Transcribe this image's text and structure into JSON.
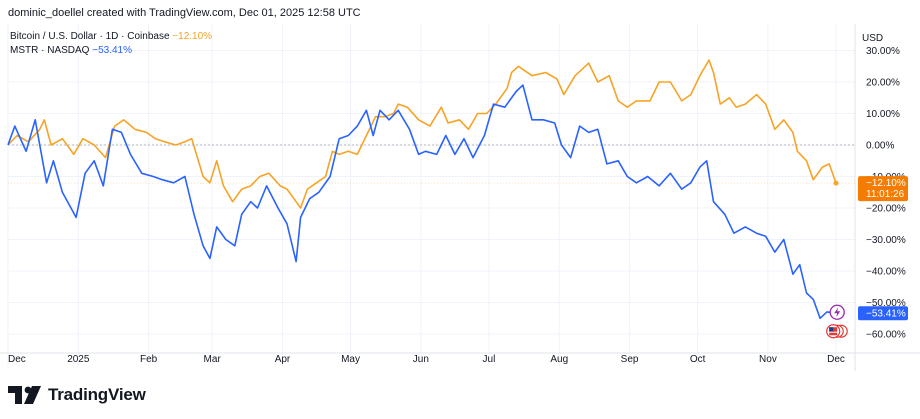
{
  "header": {
    "caption": "dominic_doellel created with TradingView.com, Dec 01, 2025 12:58 UTC"
  },
  "legend": {
    "row1_name": "Bitcoin / U.S. Dollar · 1D · Coinbase",
    "row1_change": "−12.10%",
    "row2_name": "MSTR · NASDAQ",
    "row2_change": "−53.41%"
  },
  "currency": "USD",
  "footer": {
    "brand": "TradingView"
  },
  "colors": {
    "btc": "#f7a325",
    "mstr": "#2962ff",
    "grid": "#f0f3fa",
    "zero_line": "#b2b5be",
    "axis_text": "#131722",
    "btc_label_bg": "#f57c00"
  },
  "badges": {
    "btc_value": "−12.10%",
    "btc_countdown": "11:01:26",
    "mstr_value": "−53.41%"
  },
  "chart_data": {
    "type": "line",
    "y_scale": "percent",
    "ylim": [
      -63,
      30
    ],
    "y_ticks": [
      "30.00%",
      "20.00%",
      "10.00%",
      "0.00%",
      "−10.00%",
      "−20.00%",
      "−30.00%",
      "−40.00%",
      "−50.00%",
      "−60.00%"
    ],
    "y_tick_values": [
      30,
      20,
      10,
      0,
      -10,
      -20,
      -30,
      -40,
      -50,
      -60
    ],
    "x_ticks": [
      "Dec",
      "2025",
      "Feb",
      "Mar",
      "Apr",
      "May",
      "Jun",
      "Jul",
      "Aug",
      "Sep",
      "Oct",
      "Nov",
      "Dec"
    ],
    "x_tick_dates": [
      "2024-12-01",
      "2025-01-01",
      "2025-02-01",
      "2025-03-01",
      "2025-04-01",
      "2025-05-01",
      "2025-06-01",
      "2025-07-01",
      "2025-08-01",
      "2025-09-01",
      "2025-10-01",
      "2025-11-01",
      "2025-12-01"
    ],
    "series": [
      {
        "name": "Bitcoin / U.S. Dollar · 1D · Coinbase",
        "color": "#f7a325",
        "last_value": "−12.10%",
        "points": [
          [
            "2024-12-01",
            0
          ],
          [
            "2024-12-05",
            3
          ],
          [
            "2024-12-10",
            1
          ],
          [
            "2024-12-15",
            5
          ],
          [
            "2024-12-17",
            8
          ],
          [
            "2024-12-20",
            0
          ],
          [
            "2024-12-25",
            2
          ],
          [
            "2024-12-30",
            -3
          ],
          [
            "2025-01-03",
            2
          ],
          [
            "2025-01-08",
            0
          ],
          [
            "2025-01-13",
            -4
          ],
          [
            "2025-01-17",
            6
          ],
          [
            "2025-01-21",
            8
          ],
          [
            "2025-01-26",
            5
          ],
          [
            "2025-01-31",
            4
          ],
          [
            "2025-02-04",
            2
          ],
          [
            "2025-02-08",
            1
          ],
          [
            "2025-02-13",
            0
          ],
          [
            "2025-02-17",
            1
          ],
          [
            "2025-02-20",
            2
          ],
          [
            "2025-02-25",
            -10
          ],
          [
            "2025-02-28",
            -12
          ],
          [
            "2025-03-03",
            -5
          ],
          [
            "2025-03-06",
            -13
          ],
          [
            "2025-03-10",
            -18
          ],
          [
            "2025-03-14",
            -14
          ],
          [
            "2025-03-18",
            -13
          ],
          [
            "2025-03-22",
            -10
          ],
          [
            "2025-03-26",
            -9
          ],
          [
            "2025-03-31",
            -13
          ],
          [
            "2025-04-03",
            -14
          ],
          [
            "2025-04-07",
            -18
          ],
          [
            "2025-04-09",
            -20
          ],
          [
            "2025-04-12",
            -14
          ],
          [
            "2025-04-16",
            -12
          ],
          [
            "2025-04-20",
            -10
          ],
          [
            "2025-04-23",
            -2
          ],
          [
            "2025-04-26",
            -3
          ],
          [
            "2025-04-30",
            -2
          ],
          [
            "2025-05-04",
            -3
          ],
          [
            "2025-05-08",
            3
          ],
          [
            "2025-05-12",
            9
          ],
          [
            "2025-05-16",
            9
          ],
          [
            "2025-05-20",
            10
          ],
          [
            "2025-05-22",
            13
          ],
          [
            "2025-05-26",
            12
          ],
          [
            "2025-05-31",
            8
          ],
          [
            "2025-06-05",
            6
          ],
          [
            "2025-06-10",
            12
          ],
          [
            "2025-06-13",
            7
          ],
          [
            "2025-06-18",
            8
          ],
          [
            "2025-06-22",
            5
          ],
          [
            "2025-06-26",
            10
          ],
          [
            "2025-06-30",
            10
          ],
          [
            "2025-07-04",
            13
          ],
          [
            "2025-07-09",
            18
          ],
          [
            "2025-07-11",
            23
          ],
          [
            "2025-07-14",
            25
          ],
          [
            "2025-07-20",
            22
          ],
          [
            "2025-07-26",
            23
          ],
          [
            "2025-07-31",
            21
          ],
          [
            "2025-08-03",
            16
          ],
          [
            "2025-08-08",
            22
          ],
          [
            "2025-08-11",
            24
          ],
          [
            "2025-08-14",
            26
          ],
          [
            "2025-08-18",
            20
          ],
          [
            "2025-08-23",
            22
          ],
          [
            "2025-08-27",
            14
          ],
          [
            "2025-08-31",
            12
          ],
          [
            "2025-09-04",
            14
          ],
          [
            "2025-09-10",
            14
          ],
          [
            "2025-09-14",
            20
          ],
          [
            "2025-09-19",
            20
          ],
          [
            "2025-09-24",
            14
          ],
          [
            "2025-09-28",
            16
          ],
          [
            "2025-10-02",
            22
          ],
          [
            "2025-10-06",
            27
          ],
          [
            "2025-10-08",
            23
          ],
          [
            "2025-10-11",
            13
          ],
          [
            "2025-10-15",
            15
          ],
          [
            "2025-10-18",
            12
          ],
          [
            "2025-10-22",
            13
          ],
          [
            "2025-10-27",
            16
          ],
          [
            "2025-10-31",
            13
          ],
          [
            "2025-11-04",
            5
          ],
          [
            "2025-11-08",
            8
          ],
          [
            "2025-11-12",
            4
          ],
          [
            "2025-11-14",
            -2
          ],
          [
            "2025-11-18",
            -5
          ],
          [
            "2025-11-21",
            -11
          ],
          [
            "2025-11-25",
            -7
          ],
          [
            "2025-11-28",
            -6
          ],
          [
            "2025-12-01",
            -12.1
          ]
        ]
      },
      {
        "name": "MSTR · NASDAQ",
        "color": "#2962ff",
        "last_value": "−53.41%",
        "points": [
          [
            "2024-12-01",
            0
          ],
          [
            "2024-12-04",
            6
          ],
          [
            "2024-12-09",
            -2
          ],
          [
            "2024-12-13",
            8
          ],
          [
            "2024-12-18",
            -12
          ],
          [
            "2024-12-21",
            -5
          ],
          [
            "2024-12-25",
            -15
          ],
          [
            "2024-12-31",
            -23
          ],
          [
            "2025-01-04",
            -9
          ],
          [
            "2025-01-08",
            -5
          ],
          [
            "2025-01-12",
            -13
          ],
          [
            "2025-01-16",
            5
          ],
          [
            "2025-01-20",
            4
          ],
          [
            "2025-01-24",
            -3
          ],
          [
            "2025-01-29",
            -9
          ],
          [
            "2025-02-03",
            -10
          ],
          [
            "2025-02-07",
            -11
          ],
          [
            "2025-02-12",
            -12
          ],
          [
            "2025-02-17",
            -10
          ],
          [
            "2025-02-21",
            -22
          ],
          [
            "2025-02-25",
            -32
          ],
          [
            "2025-02-28",
            -36
          ],
          [
            "2025-03-03",
            -26
          ],
          [
            "2025-03-07",
            -30
          ],
          [
            "2025-03-11",
            -32
          ],
          [
            "2025-03-14",
            -22
          ],
          [
            "2025-03-18",
            -18
          ],
          [
            "2025-03-21",
            -20
          ],
          [
            "2025-03-25",
            -13
          ],
          [
            "2025-03-30",
            -20
          ],
          [
            "2025-04-03",
            -25
          ],
          [
            "2025-04-07",
            -37
          ],
          [
            "2025-04-09",
            -23
          ],
          [
            "2025-04-13",
            -17
          ],
          [
            "2025-04-17",
            -15
          ],
          [
            "2025-04-22",
            -10
          ],
          [
            "2025-04-26",
            2
          ],
          [
            "2025-04-30",
            3
          ],
          [
            "2025-05-04",
            6
          ],
          [
            "2025-05-08",
            11
          ],
          [
            "2025-05-11",
            3
          ],
          [
            "2025-05-14",
            11
          ],
          [
            "2025-05-18",
            8
          ],
          [
            "2025-05-22",
            11
          ],
          [
            "2025-05-27",
            5
          ],
          [
            "2025-05-31",
            -3
          ],
          [
            "2025-06-03",
            -2
          ],
          [
            "2025-06-08",
            -3
          ],
          [
            "2025-06-12",
            3
          ],
          [
            "2025-06-16",
            -3
          ],
          [
            "2025-06-20",
            2
          ],
          [
            "2025-06-24",
            -4
          ],
          [
            "2025-06-29",
            3
          ],
          [
            "2025-07-03",
            13
          ],
          [
            "2025-07-08",
            12
          ],
          [
            "2025-07-13",
            17
          ],
          [
            "2025-07-16",
            19
          ],
          [
            "2025-07-20",
            8
          ],
          [
            "2025-07-25",
            8
          ],
          [
            "2025-07-30",
            7
          ],
          [
            "2025-08-02",
            0
          ],
          [
            "2025-08-06",
            -4
          ],
          [
            "2025-08-10",
            6
          ],
          [
            "2025-08-14",
            4
          ],
          [
            "2025-08-18",
            5
          ],
          [
            "2025-08-22",
            -6
          ],
          [
            "2025-08-27",
            -5
          ],
          [
            "2025-08-31",
            -10
          ],
          [
            "2025-09-04",
            -12
          ],
          [
            "2025-09-09",
            -10
          ],
          [
            "2025-09-14",
            -13
          ],
          [
            "2025-09-19",
            -9
          ],
          [
            "2025-09-24",
            -14
          ],
          [
            "2025-09-28",
            -12
          ],
          [
            "2025-10-02",
            -7
          ],
          [
            "2025-10-05",
            -5
          ],
          [
            "2025-10-08",
            -18
          ],
          [
            "2025-10-13",
            -22
          ],
          [
            "2025-10-17",
            -28
          ],
          [
            "2025-10-22",
            -26
          ],
          [
            "2025-10-27",
            -28
          ],
          [
            "2025-10-31",
            -29
          ],
          [
            "2025-11-04",
            -34
          ],
          [
            "2025-11-08",
            -30
          ],
          [
            "2025-11-12",
            -41
          ],
          [
            "2025-11-15",
            -38
          ],
          [
            "2025-11-18",
            -47
          ],
          [
            "2025-11-21",
            -49
          ],
          [
            "2025-11-24",
            -55
          ],
          [
            "2025-11-27",
            -53
          ],
          [
            "2025-12-01",
            -53.41
          ]
        ]
      }
    ]
  }
}
